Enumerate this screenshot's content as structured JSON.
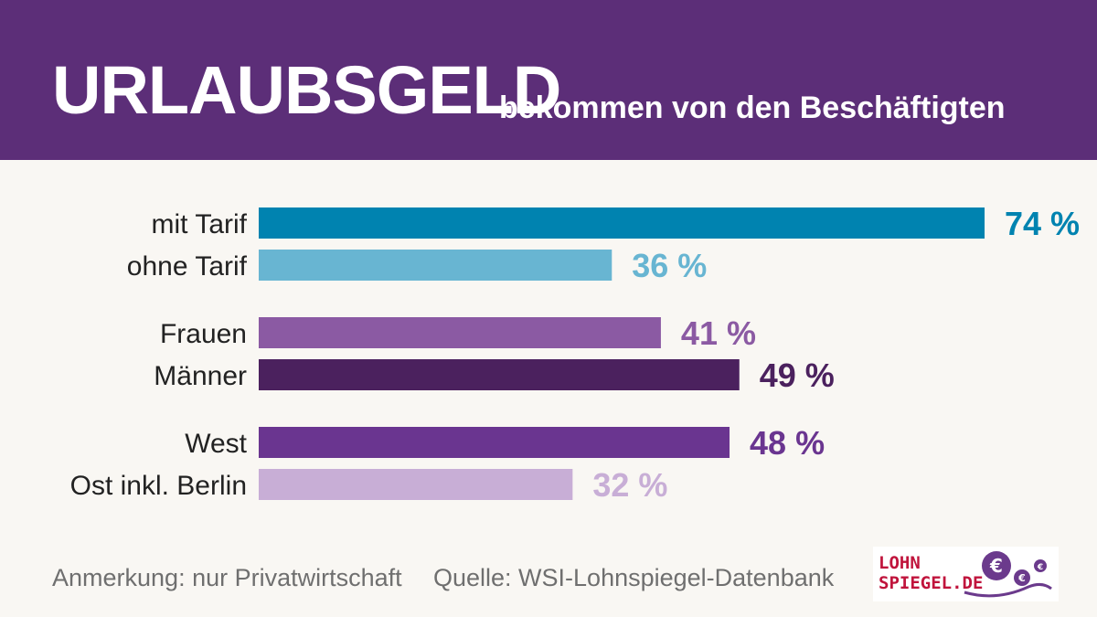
{
  "header": {
    "title": "URLAUBSGELD",
    "subtitle": "bekommen von den Beschäftigten"
  },
  "colors": {
    "header_bg": "#5c2e78",
    "background": "#f9f7f3",
    "logo_red": "#c0143c",
    "logo_purple": "#6b3a8c"
  },
  "chart_data": {
    "type": "bar",
    "orientation": "horizontal",
    "xlim": [
      0,
      100
    ],
    "grid": false,
    "categories": [
      "mit Tarif",
      "ohne Tarif",
      "Frauen",
      "Männer",
      "West",
      "Ost inkl. Berlin"
    ],
    "values": [
      74,
      36,
      41,
      49,
      48,
      32
    ],
    "labels": [
      "74 %",
      "36 %",
      "41 %",
      "49 %",
      "48 %",
      "32 %"
    ],
    "colors": [
      "#0083b0",
      "#68b5d2",
      "#8b5aa3",
      "#4b215e",
      "#6a3590",
      "#c8aed6"
    ],
    "groups": [
      [
        0,
        1
      ],
      [
        2,
        3
      ],
      [
        4,
        5
      ]
    ]
  },
  "footer": {
    "note": "Anmerkung: nur Privatwirtschaft",
    "source": "Quelle: WSI-Lohnspiegel-Datenbank"
  },
  "logo": {
    "line1": "LOHN",
    "line2": "SPIEGEL.DE",
    "icon": "euro-coins-icon"
  }
}
